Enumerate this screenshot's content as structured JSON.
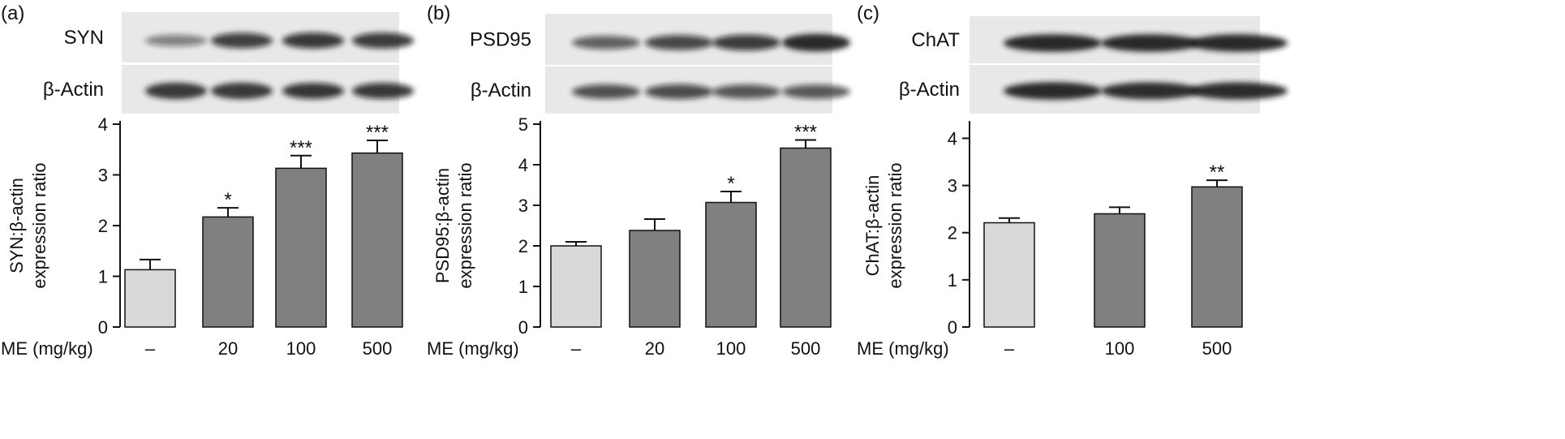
{
  "figure": {
    "x_row_label": "ME (mg/kg)",
    "significance_note": ""
  },
  "chart_data": [
    {
      "type": "bar",
      "panel_label": "(a)",
      "blot_labels": [
        "SYN",
        "β-Actin"
      ],
      "categories": [
        "–",
        "20",
        "100",
        "500"
      ],
      "values": [
        1.13,
        2.17,
        3.13,
        3.43
      ],
      "errors": [
        0.2,
        0.18,
        0.25,
        0.25
      ],
      "significance": [
        "",
        "*",
        "***",
        "***"
      ],
      "bar_colors": [
        "#d9d9d9",
        "#808080",
        "#808080",
        "#808080"
      ],
      "title": "",
      "xlabel": "ME (mg/kg)",
      "ylabel": [
        "SYN:β-actin",
        "expression ratio"
      ],
      "ylim": [
        0,
        4
      ],
      "yticks": [
        "0",
        "1",
        "2",
        "3",
        "4"
      ],
      "grid": false,
      "blot_bands": {
        "row1": [
          0.35,
          0.75,
          0.8,
          0.78
        ],
        "row2": [
          0.85,
          0.85,
          0.82,
          0.8
        ]
      }
    },
    {
      "type": "bar",
      "panel_label": "(b)",
      "blot_labels": [
        "PSD95",
        "β-Actin"
      ],
      "categories": [
        "–",
        "20",
        "100",
        "500"
      ],
      "values": [
        2.0,
        2.38,
        3.07,
        4.41
      ],
      "errors": [
        0.1,
        0.28,
        0.27,
        0.2
      ],
      "significance": [
        "",
        "",
        "*",
        "***"
      ],
      "bar_colors": [
        "#d9d9d9",
        "#808080",
        "#808080",
        "#808080"
      ],
      "title": "",
      "xlabel": "ME (mg/kg)",
      "ylabel": [
        "PSD95:β-actin",
        "expression ratio"
      ],
      "ylim": [
        0,
        5
      ],
      "yticks": [
        "0",
        "1",
        "2",
        "3",
        "4",
        "5"
      ],
      "grid": false,
      "blot_bands": {
        "row1": [
          0.55,
          0.7,
          0.78,
          0.95
        ],
        "row2": [
          0.65,
          0.68,
          0.62,
          0.6
        ]
      }
    },
    {
      "type": "bar",
      "panel_label": "(c)",
      "blot_labels": [
        "ChAT",
        "β-Actin"
      ],
      "categories": [
        "–",
        "100",
        "500"
      ],
      "values": [
        2.21,
        2.4,
        2.97
      ],
      "errors": [
        0.1,
        0.14,
        0.14
      ],
      "significance": [
        "",
        "",
        "**"
      ],
      "bar_colors": [
        "#d9d9d9",
        "#808080",
        "#808080"
      ],
      "title": "",
      "xlabel": "ME (mg/kg)",
      "ylabel": [
        "ChAT:β-actin",
        "expression ratio"
      ],
      "ylim": [
        0,
        4.3
      ],
      "yticks": [
        "0",
        "1",
        "2",
        "3",
        "4"
      ],
      "grid": false,
      "blot_bands": {
        "row1": [
          0.95,
          0.95,
          0.95
        ],
        "row2": [
          0.95,
          0.92,
          0.93
        ]
      }
    }
  ]
}
